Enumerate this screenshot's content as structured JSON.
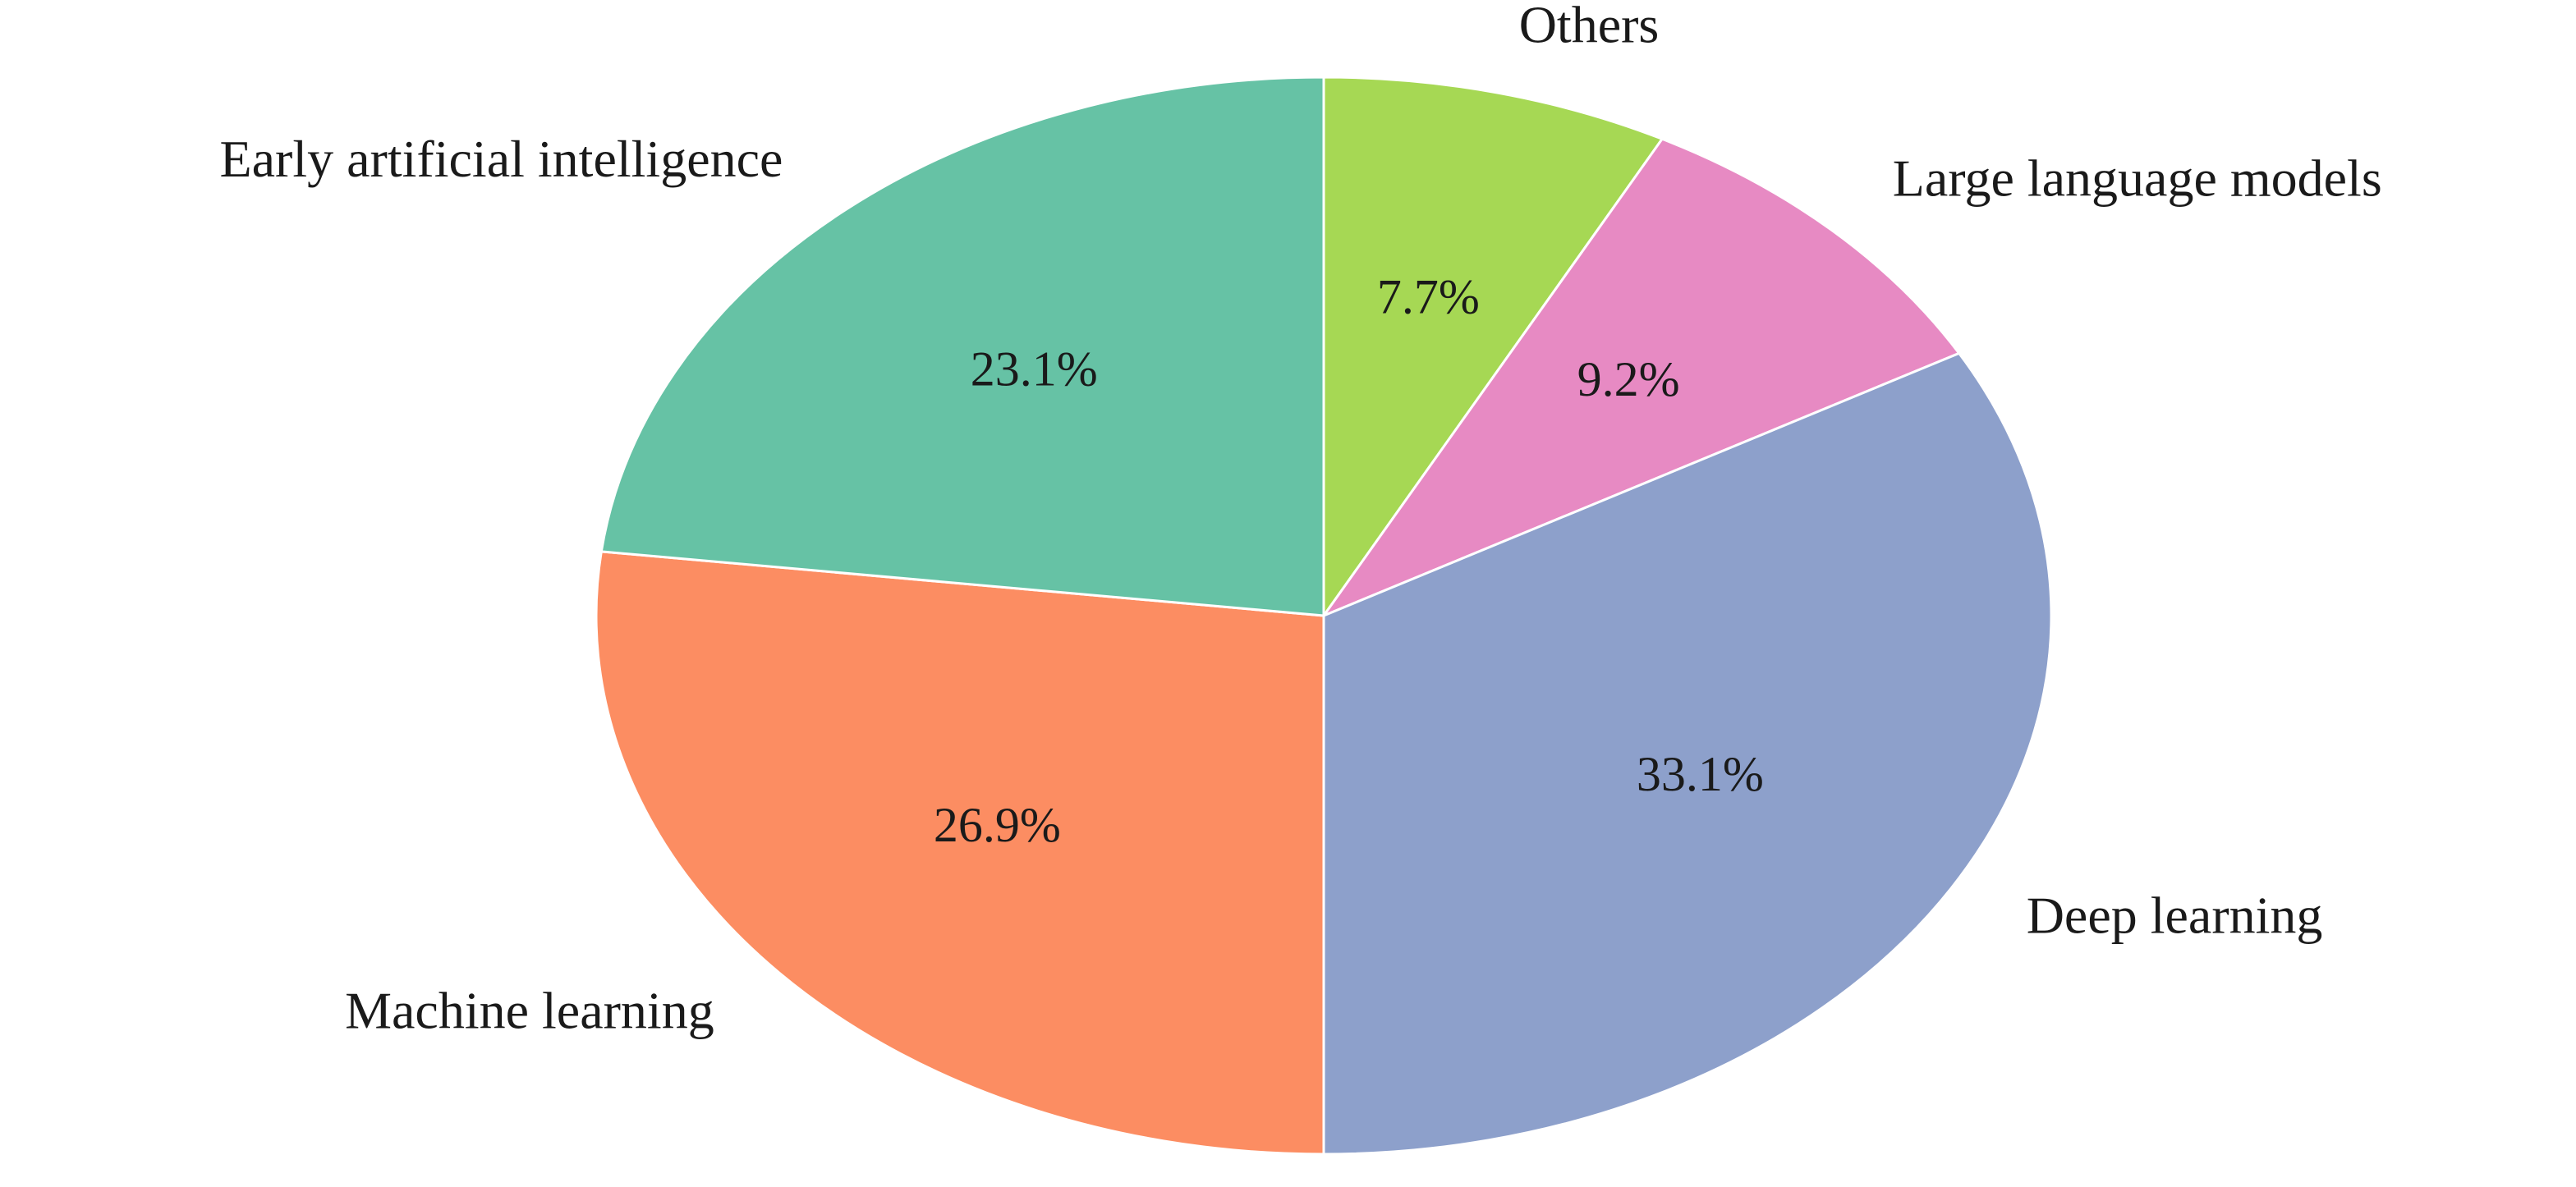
{
  "chart_data": {
    "type": "pie",
    "start_angle_deg": 90,
    "direction": "clockwise",
    "edge_color": "#ffffff",
    "slices": [
      {
        "label": "Others",
        "value": 7.7,
        "pct_label": "7.7%",
        "color": "#a6d854"
      },
      {
        "label": "Large language models",
        "value": 9.2,
        "pct_label": "9.2%",
        "color": "#e78ac3"
      },
      {
        "label": "Deep learning",
        "value": 33.1,
        "pct_label": "33.1%",
        "color": "#8da0cb"
      },
      {
        "label": "Machine learning",
        "value": 26.9,
        "pct_label": "26.9%",
        "color": "#fc8d62"
      },
      {
        "label": "Early artificial intelligence",
        "value": 23.1,
        "pct_label": "23.1%",
        "color": "#66c2a5"
      }
    ]
  }
}
